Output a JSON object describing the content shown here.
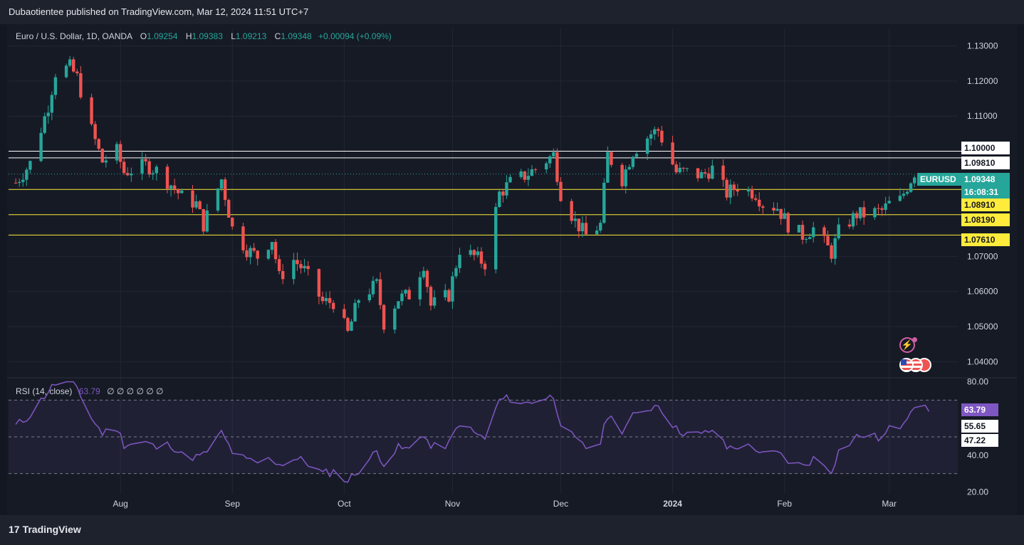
{
  "header": {
    "publisher_text": "Dubaotientee published on TradingView.com, Mar 12, 2024 11:51 UTC+7"
  },
  "legend": {
    "symbol": "Euro / U.S. Dollar, 1D, OANDA",
    "open_label": "O",
    "open": "1.09254",
    "high_label": "H",
    "high": "1.09383",
    "low_label": "L",
    "low": "1.09213",
    "close_label": "C",
    "close": "1.09348",
    "change": "+0.00094 (+0.09%)"
  },
  "rsi_legend": {
    "label": "RSI (14, close)",
    "value": "63.79",
    "placeholders": "∅ ∅ ∅ ∅ ∅ ∅"
  },
  "footer": {
    "brand": "TradingView",
    "logo": "17"
  },
  "colors": {
    "up": "#26a69a",
    "down": "#ef5350",
    "rsi": "#7e57c2",
    "support": "#ffeb3b",
    "resistance": "#ffffff"
  },
  "price_tags": {
    "symbol_tag": "EURUSD",
    "last_price": "1.09348",
    "countdown": "16:08:31",
    "level_1": "1.10000",
    "level_2": "1.09810",
    "level_3": "1.08910",
    "level_4": "1.08190",
    "level_5": "1.07610"
  },
  "rsi_tags": {
    "current": "63.79",
    "upper": "55.65",
    "lower": "47.22"
  },
  "chart_data": [
    {
      "type": "candlestick",
      "title": "Euro / U.S. Dollar, 1D, OANDA",
      "ylim": [
        1.036,
        1.135
      ],
      "y_ticks": [
        1.13,
        1.12,
        1.11,
        1.1,
        1.07,
        1.06,
        1.05,
        1.04
      ],
      "y_tick_labels": [
        "1.13000",
        "1.12000",
        "1.11000",
        "1.10000",
        "1.07000",
        "1.06000",
        "1.05000",
        "1.04000"
      ],
      "x_ticks": [
        {
          "label": "Aug",
          "date": "2023-08-01"
        },
        {
          "label": "Sep",
          "date": "2023-09-01"
        },
        {
          "label": "Oct",
          "date": "2023-10-02"
        },
        {
          "label": "Nov",
          "date": "2023-11-01"
        },
        {
          "label": "Dec",
          "date": "2023-12-01"
        },
        {
          "label": "2024",
          "date": "2024-01-01"
        },
        {
          "label": "Feb",
          "date": "2024-02-01"
        },
        {
          "label": "Mar",
          "date": "2024-03-01"
        }
      ],
      "horizontal_levels": [
        {
          "value": 1.1,
          "color": "#ffffff"
        },
        {
          "value": 1.0981,
          "color": "#ffffff"
        },
        {
          "value": 1.0891,
          "color": "#ffeb3b"
        },
        {
          "value": 1.0819,
          "color": "#ffeb3b"
        },
        {
          "value": 1.0761,
          "color": "#ffeb3b"
        }
      ],
      "last_price": 1.09348,
      "close_path": [
        [
          "2023-07-03",
          1.091
        ],
        [
          "2023-07-07",
          1.0965
        ],
        [
          "2023-07-12",
          1.113
        ],
        [
          "2023-07-14",
          1.1225
        ],
        [
          "2023-07-18",
          1.124
        ],
        [
          "2023-07-20",
          1.121
        ],
        [
          "2023-07-24",
          1.106
        ],
        [
          "2023-07-27",
          1.097
        ],
        [
          "2023-07-31",
          1.1
        ],
        [
          "2023-08-02",
          1.094
        ],
        [
          "2023-08-08",
          1.096
        ],
        [
          "2023-08-11",
          1.0945
        ],
        [
          "2023-08-15",
          1.0905
        ],
        [
          "2023-08-18",
          1.087
        ],
        [
          "2023-08-22",
          1.085
        ],
        [
          "2023-08-24",
          1.079
        ],
        [
          "2023-08-29",
          1.092
        ],
        [
          "2023-09-01",
          1.078
        ],
        [
          "2023-09-05",
          1.072
        ],
        [
          "2023-09-08",
          1.07
        ],
        [
          "2023-09-12",
          1.075
        ],
        [
          "2023-09-14",
          1.064
        ],
        [
          "2023-09-18",
          1.069
        ],
        [
          "2023-09-21",
          1.066
        ],
        [
          "2023-09-26",
          1.057
        ],
        [
          "2023-09-29",
          1.057
        ],
        [
          "2023-10-03",
          1.048
        ],
        [
          "2023-10-06",
          1.058
        ],
        [
          "2023-10-11",
          1.062
        ],
        [
          "2023-10-13",
          1.051
        ],
        [
          "2023-10-17",
          1.058
        ],
        [
          "2023-10-20",
          1.059
        ],
        [
          "2023-10-24",
          1.068
        ],
        [
          "2023-10-26",
          1.056
        ],
        [
          "2023-10-31",
          1.059
        ],
        [
          "2023-11-03",
          1.072
        ],
        [
          "2023-11-07",
          1.07
        ],
        [
          "2023-11-10",
          1.068
        ],
        [
          "2023-11-14",
          1.088
        ],
        [
          "2023-11-17",
          1.091
        ],
        [
          "2023-11-21",
          1.093
        ],
        [
          "2023-11-24",
          1.095
        ],
        [
          "2023-11-29",
          1.099
        ],
        [
          "2023-12-01",
          1.088
        ],
        [
          "2023-12-05",
          1.08
        ],
        [
          "2023-12-08",
          1.076
        ],
        [
          "2023-12-12",
          1.079
        ],
        [
          "2023-12-14",
          1.099
        ],
        [
          "2023-12-18",
          1.092
        ],
        [
          "2023-12-21",
          1.1
        ],
        [
          "2023-12-26",
          1.105
        ],
        [
          "2023-12-28",
          1.106
        ],
        [
          "2024-01-02",
          1.094
        ],
        [
          "2024-01-05",
          1.094
        ],
        [
          "2024-01-09",
          1.093
        ],
        [
          "2024-01-12",
          1.095
        ],
        [
          "2024-01-16",
          1.088
        ],
        [
          "2024-01-19",
          1.09
        ],
        [
          "2024-01-24",
          1.088
        ],
        [
          "2024-01-26",
          1.085
        ],
        [
          "2024-01-30",
          1.084
        ],
        [
          "2024-02-02",
          1.079
        ],
        [
          "2024-02-06",
          1.076
        ],
        [
          "2024-02-09",
          1.078
        ],
        [
          "2024-02-14",
          1.071
        ],
        [
          "2024-02-16",
          1.077
        ],
        [
          "2024-02-21",
          1.082
        ],
        [
          "2024-02-23",
          1.082
        ],
        [
          "2024-02-28",
          1.083
        ],
        [
          "2024-03-01",
          1.085
        ],
        [
          "2024-03-04",
          1.086
        ],
        [
          "2024-03-06",
          1.09
        ],
        [
          "2024-03-08",
          1.094
        ],
        [
          "2024-03-12",
          1.0935
        ]
      ]
    },
    {
      "type": "line",
      "title": "RSI (14, close)",
      "ylim": [
        19,
        81
      ],
      "y_ticks": [
        80,
        40,
        20
      ],
      "y_tick_labels": [
        "80.00",
        "40.00",
        "20.00"
      ],
      "bands": [
        70,
        50,
        30
      ],
      "current": 63.79,
      "levels": [
        55.65,
        47.22
      ],
      "series": [
        [
          "2023-07-03",
          56
        ],
        [
          "2023-07-07",
          62
        ],
        [
          "2023-07-12",
          75
        ],
        [
          "2023-07-14",
          79
        ],
        [
          "2023-07-18",
          80
        ],
        [
          "2023-07-20",
          77
        ],
        [
          "2023-07-24",
          60
        ],
        [
          "2023-07-27",
          52
        ],
        [
          "2023-07-31",
          55
        ],
        [
          "2023-08-02",
          46
        ],
        [
          "2023-08-08",
          47
        ],
        [
          "2023-08-11",
          44
        ],
        [
          "2023-08-15",
          46
        ],
        [
          "2023-08-18",
          40
        ],
        [
          "2023-08-22",
          39
        ],
        [
          "2023-08-24",
          40
        ],
        [
          "2023-08-29",
          52
        ],
        [
          "2023-09-01",
          42
        ],
        [
          "2023-09-05",
          37
        ],
        [
          "2023-09-08",
          36
        ],
        [
          "2023-09-12",
          38
        ],
        [
          "2023-09-14",
          35
        ],
        [
          "2023-09-18",
          38
        ],
        [
          "2023-09-21",
          37
        ],
        [
          "2023-09-26",
          30
        ],
        [
          "2023-09-29",
          31
        ],
        [
          "2023-10-03",
          26
        ],
        [
          "2023-10-06",
          32
        ],
        [
          "2023-10-11",
          42
        ],
        [
          "2023-10-13",
          36
        ],
        [
          "2023-10-17",
          44
        ],
        [
          "2023-10-20",
          43
        ],
        [
          "2023-10-24",
          52
        ],
        [
          "2023-10-26",
          44
        ],
        [
          "2023-10-31",
          46
        ],
        [
          "2023-11-03",
          58
        ],
        [
          "2023-11-07",
          52
        ],
        [
          "2023-11-10",
          49
        ],
        [
          "2023-11-14",
          70
        ],
        [
          "2023-11-17",
          71
        ],
        [
          "2023-11-21",
          68
        ],
        [
          "2023-11-24",
          70
        ],
        [
          "2023-11-29",
          72
        ],
        [
          "2023-12-01",
          58
        ],
        [
          "2023-12-05",
          48
        ],
        [
          "2023-12-08",
          44
        ],
        [
          "2023-12-12",
          47
        ],
        [
          "2023-12-14",
          62
        ],
        [
          "2023-12-18",
          54
        ],
        [
          "2023-12-21",
          61
        ],
        [
          "2023-12-26",
          66
        ],
        [
          "2023-12-28",
          68
        ],
        [
          "2024-01-02",
          54
        ],
        [
          "2024-01-05",
          52
        ],
        [
          "2024-01-09",
          51
        ],
        [
          "2024-01-12",
          54
        ],
        [
          "2024-01-16",
          44
        ],
        [
          "2024-01-19",
          45
        ],
        [
          "2024-01-24",
          44
        ],
        [
          "2024-01-26",
          40
        ],
        [
          "2024-01-30",
          41
        ],
        [
          "2024-02-02",
          37
        ],
        [
          "2024-02-06",
          34
        ],
        [
          "2024-02-09",
          38
        ],
        [
          "2024-02-14",
          32
        ],
        [
          "2024-02-16",
          42
        ],
        [
          "2024-02-21",
          50
        ],
        [
          "2024-02-23",
          51
        ],
        [
          "2024-02-28",
          49
        ],
        [
          "2024-03-01",
          54
        ],
        [
          "2024-03-04",
          56
        ],
        [
          "2024-03-06",
          62
        ],
        [
          "2024-03-08",
          68
        ],
        [
          "2024-03-12",
          63.79
        ]
      ]
    }
  ]
}
